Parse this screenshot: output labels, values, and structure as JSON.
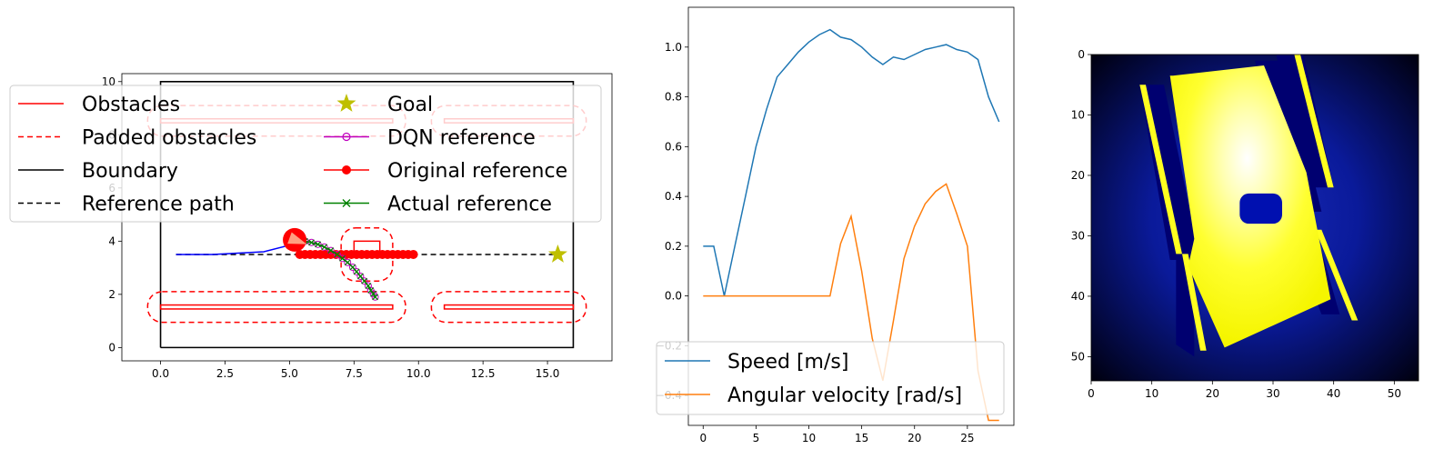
{
  "chart_data": [
    {
      "type": "line",
      "xlim": [
        -1.5,
        17.5
      ],
      "ylim": [
        -0.5,
        10.3
      ],
      "xticks": [
        0.0,
        2.5,
        5.0,
        7.5,
        10.0,
        12.5,
        15.0
      ],
      "xtick_labels": [
        "0.0",
        "2.5",
        "5.0",
        "7.5",
        "10.0",
        "12.5",
        "15.0"
      ],
      "yticks": [
        0,
        2,
        4,
        6,
        8,
        10
      ],
      "ytick_labels": [
        "0",
        "2",
        "4",
        "6",
        "8",
        "10"
      ],
      "grid": false,
      "legend_position": "upper-center",
      "legend": [
        {
          "label": "Obstacles",
          "color": "#ff0000",
          "style": "solid"
        },
        {
          "label": "Padded obstacles",
          "color": "#ff0000",
          "style": "dashed"
        },
        {
          "label": "Boundary",
          "color": "#000000",
          "style": "solid"
        },
        {
          "label": "Reference path",
          "color": "#000000",
          "style": "dashed"
        },
        {
          "label": "Goal",
          "color": "#bfbf00",
          "marker": "star"
        },
        {
          "label": "DQN reference",
          "color": "#bf00bf",
          "marker": "open-circle"
        },
        {
          "label": "Original reference",
          "color": "#ff0000",
          "marker": "filled-circle"
        },
        {
          "label": "Actual reference",
          "color": "#008000",
          "marker": "x"
        }
      ],
      "boundary": {
        "x": [
          0,
          16,
          16,
          0,
          0
        ],
        "y": [
          0,
          0,
          10,
          10,
          0
        ]
      },
      "obstacles": [
        {
          "x0": 0.0,
          "x1": 9.0,
          "y0": 1.45,
          "y1": 1.6
        },
        {
          "x0": 11.0,
          "x1": 16.0,
          "y0": 1.45,
          "y1": 1.6
        },
        {
          "x0": 0.0,
          "x1": 9.0,
          "y0": 8.45,
          "y1": 8.6
        },
        {
          "x0": 11.0,
          "x1": 16.0,
          "y0": 8.45,
          "y1": 8.6
        },
        {
          "x0": 7.5,
          "x1": 8.5,
          "y0": 3.4,
          "y1": 4.0
        }
      ],
      "padded_obstacles": [
        {
          "x0": -0.5,
          "x1": 9.5,
          "y0": 0.95,
          "y1": 2.1
        },
        {
          "x0": 10.5,
          "x1": 16.5,
          "y0": 0.95,
          "y1": 2.1
        },
        {
          "x0": -0.5,
          "x1": 9.5,
          "y0": 7.95,
          "y1": 9.1
        },
        {
          "x0": 10.5,
          "x1": 16.5,
          "y0": 7.95,
          "y1": 9.1
        },
        {
          "x0": 7.0,
          "x1": 9.0,
          "y0": 2.5,
          "y1": 4.5
        }
      ],
      "reference_path": {
        "x": [
          0.6,
          15.4
        ],
        "y": [
          3.5,
          3.5
        ]
      },
      "goal": {
        "x": 15.4,
        "y": 3.5
      },
      "trajectory": {
        "x": [
          0.6,
          2.0,
          3.0,
          4.0,
          4.8,
          5.2
        ],
        "y": [
          3.5,
          3.5,
          3.55,
          3.6,
          3.8,
          4.05
        ]
      },
      "vehicle": {
        "x": 5.2,
        "y": 4.05,
        "heading_deg": -20
      },
      "original_reference": {
        "x": [
          5.4,
          5.6,
          5.8,
          6.0,
          6.2,
          6.4,
          6.6,
          6.8,
          7.0,
          7.2,
          7.4,
          7.6,
          7.8,
          8.0,
          8.2,
          8.4,
          8.6,
          8.8,
          9.0,
          9.2,
          9.4,
          9.6,
          9.8
        ],
        "y": [
          3.5,
          3.5,
          3.5,
          3.5,
          3.5,
          3.5,
          3.5,
          3.5,
          3.5,
          3.5,
          3.5,
          3.5,
          3.5,
          3.5,
          3.5,
          3.5,
          3.5,
          3.5,
          3.5,
          3.5,
          3.5,
          3.5,
          3.5
        ]
      },
      "dqn_reference": {
        "x": [
          5.6,
          5.85,
          6.1,
          6.35,
          6.6,
          6.85,
          7.05,
          7.25,
          7.45,
          7.6,
          7.75,
          7.9,
          8.05,
          8.15,
          8.25,
          8.32
        ],
        "y": [
          4.0,
          3.95,
          3.88,
          3.78,
          3.65,
          3.5,
          3.35,
          3.2,
          3.02,
          2.85,
          2.68,
          2.5,
          2.32,
          2.15,
          2.02,
          1.9
        ]
      },
      "actual_reference": {
        "x": [
          5.6,
          5.85,
          6.1,
          6.35,
          6.6,
          6.85,
          7.05,
          7.25,
          7.45,
          7.6,
          7.75,
          7.9,
          8.05,
          8.15,
          8.25,
          8.32
        ],
        "y": [
          4.0,
          3.95,
          3.88,
          3.78,
          3.65,
          3.5,
          3.35,
          3.2,
          3.02,
          2.85,
          2.68,
          2.5,
          2.32,
          2.15,
          2.02,
          1.9
        ]
      }
    },
    {
      "type": "line",
      "xlim": [
        -1.4,
        29.4
      ],
      "ylim": [
        -0.52,
        1.16
      ],
      "xticks": [
        0,
        5,
        10,
        15,
        20,
        25
      ],
      "xtick_labels": [
        "0",
        "5",
        "10",
        "15",
        "20",
        "25"
      ],
      "yticks": [
        -0.4,
        -0.2,
        0.0,
        0.2,
        0.4,
        0.6,
        0.8,
        1.0
      ],
      "ytick_labels": [
        "−0.4",
        "−0.2",
        "0.0",
        "0.2",
        "0.4",
        "0.6",
        "0.8",
        "1.0"
      ],
      "grid": false,
      "legend_position": "lower-left",
      "x": [
        0,
        1,
        2,
        3,
        4,
        5,
        6,
        7,
        8,
        9,
        10,
        11,
        12,
        13,
        14,
        15,
        16,
        17,
        18,
        19,
        20,
        21,
        22,
        23,
        24,
        25,
        26,
        27,
        28
      ],
      "series": [
        {
          "name": "Speed [m/s]",
          "color": "#1f77b4",
          "values": [
            0.2,
            0.2,
            0.0,
            0.2,
            0.4,
            0.6,
            0.75,
            0.88,
            0.93,
            0.98,
            1.02,
            1.05,
            1.07,
            1.04,
            1.03,
            1.0,
            0.96,
            0.93,
            0.96,
            0.95,
            0.97,
            0.99,
            1.0,
            1.01,
            0.99,
            0.98,
            0.95,
            0.8,
            0.7
          ]
        },
        {
          "name": "Angular velocity [rad/s]",
          "color": "#ff7f0e",
          "values": [
            0.0,
            0.0,
            0.0,
            0.0,
            0.0,
            0.0,
            0.0,
            0.0,
            0.0,
            0.0,
            0.0,
            0.0,
            0.0,
            0.21,
            0.32,
            0.1,
            -0.17,
            -0.34,
            -0.1,
            0.15,
            0.28,
            0.37,
            0.42,
            0.45,
            0.33,
            0.2,
            -0.3,
            -0.5,
            -0.5
          ]
        }
      ]
    },
    {
      "type": "heatmap",
      "xlim": [
        0,
        54
      ],
      "ylim": [
        54,
        0
      ],
      "xticks": [
        0,
        10,
        20,
        30,
        40,
        50
      ],
      "xtick_labels": [
        "0",
        "10",
        "20",
        "30",
        "40",
        "50"
      ],
      "yticks": [
        0,
        10,
        20,
        30,
        40,
        50
      ],
      "ytick_labels": [
        "0",
        "10",
        "20",
        "30",
        "40",
        "50"
      ],
      "colormap": [
        "#000000",
        "#000080",
        "#0000c8",
        "#ffff00",
        "#ffffff"
      ],
      "free_space_polygon": [
        [
          13.5,
          3.5
        ],
        [
          28.5,
          1.8
        ],
        [
          35.5,
          19.5
        ],
        [
          39.5,
          40.5
        ],
        [
          22,
          48.5
        ],
        [
          16,
          35
        ],
        [
          17,
          30.5
        ],
        [
          13,
          3.5
        ]
      ],
      "obstacle_blob": {
        "x": 24.5,
        "y": 23,
        "w": 7,
        "h": 5
      }
    }
  ]
}
